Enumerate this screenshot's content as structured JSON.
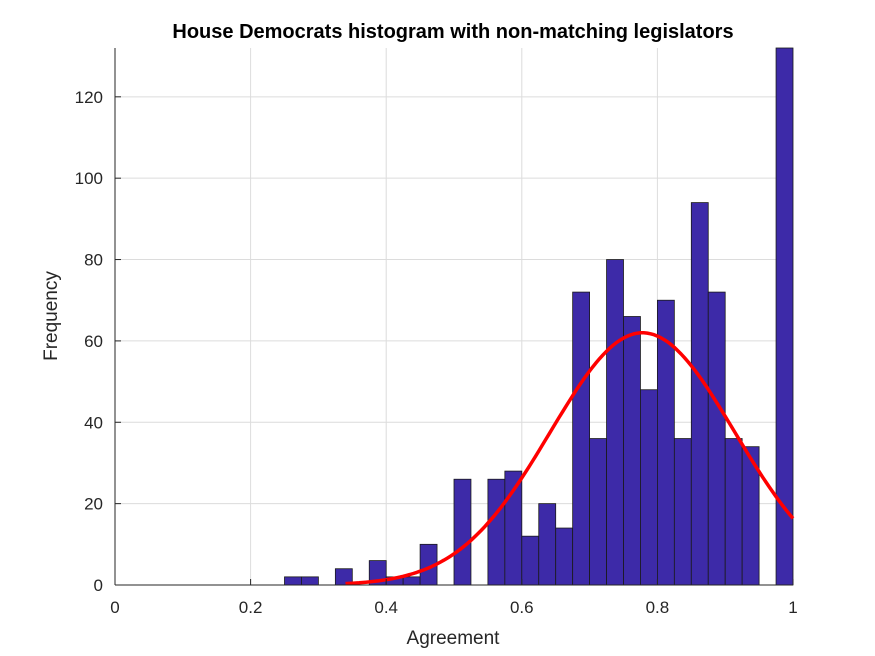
{
  "chart_data": {
    "type": "bar",
    "title": "House Democrats histogram with non-matching legislators",
    "xlabel": "Agreement",
    "ylabel": "Frequency",
    "xlim": [
      0,
      1
    ],
    "ylim": [
      0,
      132
    ],
    "grid": true,
    "x_ticks": [
      "0",
      "0.2",
      "0.4",
      "0.6",
      "0.8",
      "1"
    ],
    "y_ticks": [
      "0",
      "20",
      "40",
      "60",
      "80",
      "100",
      "120"
    ],
    "bin_width": 0.025,
    "bar_color": "#3d2aa8",
    "bars": [
      {
        "x0": 0.25,
        "value": 2
      },
      {
        "x0": 0.275,
        "value": 2
      },
      {
        "x0": 0.325,
        "value": 4
      },
      {
        "x0": 0.375,
        "value": 6
      },
      {
        "x0": 0.4,
        "value": 2
      },
      {
        "x0": 0.425,
        "value": 2
      },
      {
        "x0": 0.45,
        "value": 10
      },
      {
        "x0": 0.5,
        "value": 26
      },
      {
        "x0": 0.55,
        "value": 26
      },
      {
        "x0": 0.575,
        "value": 28
      },
      {
        "x0": 0.6,
        "value": 12
      },
      {
        "x0": 0.625,
        "value": 20
      },
      {
        "x0": 0.65,
        "value": 14
      },
      {
        "x0": 0.675,
        "value": 72
      },
      {
        "x0": 0.7,
        "value": 36
      },
      {
        "x0": 0.725,
        "value": 80
      },
      {
        "x0": 0.75,
        "value": 66
      },
      {
        "x0": 0.775,
        "value": 48
      },
      {
        "x0": 0.8,
        "value": 70
      },
      {
        "x0": 0.825,
        "value": 36
      },
      {
        "x0": 0.85,
        "value": 94
      },
      {
        "x0": 0.875,
        "value": 72
      },
      {
        "x0": 0.9,
        "value": 36
      },
      {
        "x0": 0.925,
        "value": 34
      },
      {
        "x0": 0.975,
        "value": 132
      }
    ],
    "fit_curve": {
      "type": "normal",
      "color": "#ff0000",
      "mean": 0.778,
      "sd": 0.136,
      "peak": 62,
      "x_start": 0.34,
      "x_end": 1.0
    }
  }
}
